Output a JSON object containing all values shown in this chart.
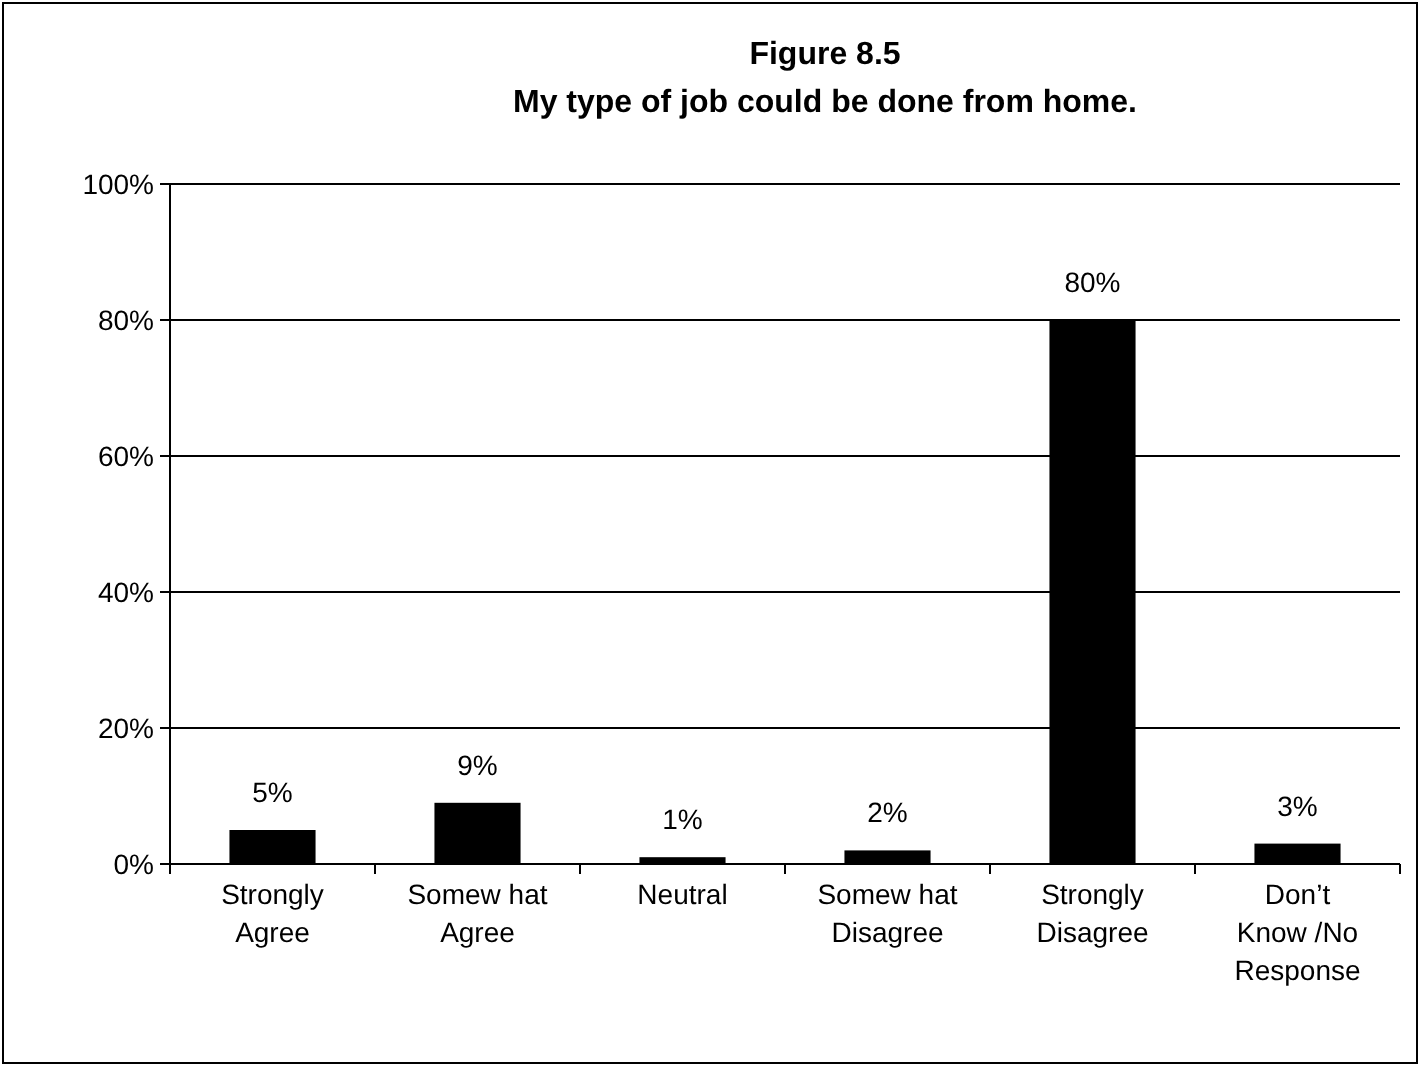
{
  "chart_data": {
    "type": "bar",
    "title": "Figure 8.5\nMy type of job could be done from home.",
    "categories": [
      "Strongly\nAgree",
      "Somew hat\nAgree",
      "Neutral",
      "Somew hat\nDisagree",
      "Strongly\nDisagree",
      "Don’t\nKnow /No\nResponse"
    ],
    "values": [
      5,
      9,
      1,
      2,
      80,
      3
    ],
    "color": "#000000",
    "data_labels": true,
    "value_labels": [
      "5%",
      "9%",
      "1%",
      "2%",
      "80%",
      "3%"
    ],
    "ylim": [
      0,
      100
    ],
    "yticks": [
      {
        "value": 0,
        "label": "0%"
      },
      {
        "value": 20,
        "label": "20%"
      },
      {
        "value": 40,
        "label": "40%"
      },
      {
        "value": 60,
        "label": "60%"
      },
      {
        "value": 80,
        "label": "80%"
      },
      {
        "value": 100,
        "label": "100%"
      }
    ],
    "grid": "y"
  }
}
